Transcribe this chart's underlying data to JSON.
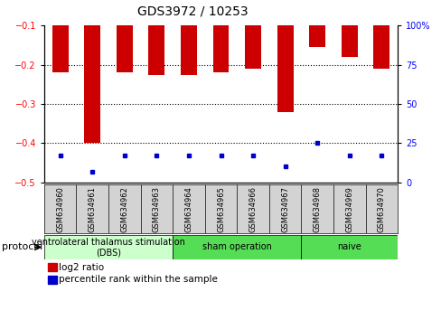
{
  "title": "GDS3972 / 10253",
  "samples": [
    "GSM634960",
    "GSM634961",
    "GSM634962",
    "GSM634963",
    "GSM634964",
    "GSM634965",
    "GSM634966",
    "GSM634967",
    "GSM634968",
    "GSM634969",
    "GSM634970"
  ],
  "log2_ratio": [
    -0.22,
    -0.4,
    -0.22,
    -0.225,
    -0.225,
    -0.22,
    -0.21,
    -0.32,
    -0.155,
    -0.18,
    -0.21
  ],
  "percentile_rank": [
    17,
    7,
    17,
    17,
    17,
    17,
    17,
    10,
    25,
    17,
    17
  ],
  "bar_color": "#cc0000",
  "dot_color": "#0000cc",
  "ylim_left": [
    -0.5,
    -0.1
  ],
  "ylim_right": [
    0,
    100
  ],
  "yticks_left": [
    -0.5,
    -0.4,
    -0.3,
    -0.2,
    -0.1
  ],
  "yticks_right": [
    0,
    25,
    50,
    75,
    100
  ],
  "bg_color": "#ffffff",
  "protocol_groups": [
    {
      "label": "ventrolateral thalamus stimulation\n(DBS)",
      "start": 0,
      "end": 3,
      "color": "#ccffcc"
    },
    {
      "label": "sham operation",
      "start": 4,
      "end": 7,
      "color": "#55dd55"
    },
    {
      "label": "naive",
      "start": 8,
      "end": 10,
      "color": "#55dd55"
    }
  ],
  "legend_items": [
    {
      "color": "#cc0000",
      "label": "log2 ratio"
    },
    {
      "color": "#0000cc",
      "label": "percentile rank within the sample"
    }
  ],
  "title_fontsize": 10,
  "tick_fontsize": 7,
  "sample_fontsize": 6,
  "legend_fontsize": 7.5,
  "protocol_fontsize": 7
}
